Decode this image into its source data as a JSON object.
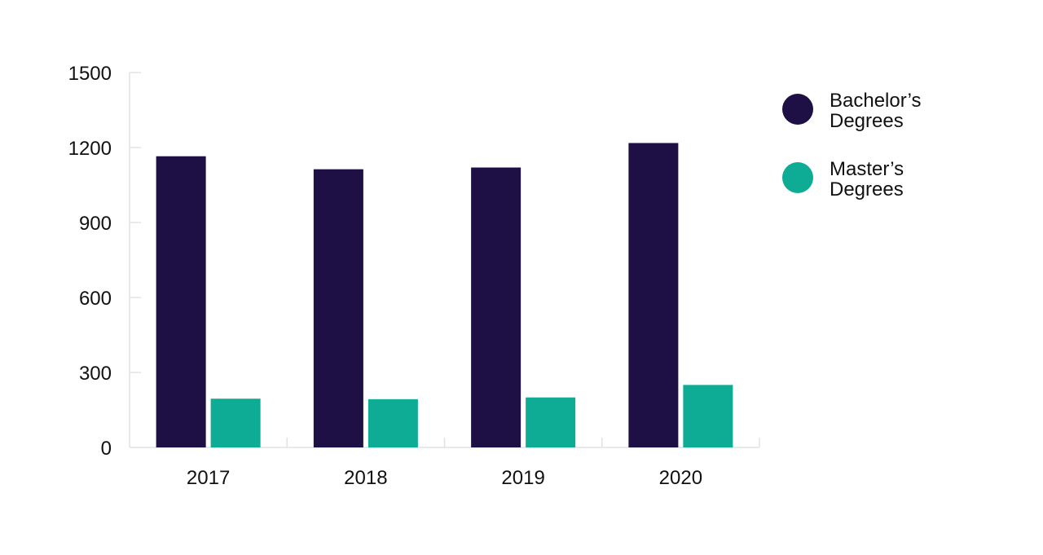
{
  "chart_data": {
    "type": "bar",
    "categories": [
      "2017",
      "2018",
      "2019",
      "2020"
    ],
    "series": [
      {
        "name": "Bachelor’s Degrees",
        "name_lines": [
          "Bachelor’s",
          "Degrees"
        ],
        "color": "#1e1045",
        "values": [
          1165,
          1113,
          1120,
          1218
        ]
      },
      {
        "name": "Master’s Degrees",
        "name_lines": [
          "Master’s",
          "Degrees"
        ],
        "color": "#0eab95",
        "values": [
          195,
          193,
          200,
          250
        ]
      }
    ],
    "ylim": [
      0,
      1500
    ],
    "yticks": [
      0,
      300,
      600,
      900,
      1200,
      1500
    ],
    "title": "",
    "xlabel": "",
    "ylabel": "",
    "grid": false,
    "legend_position": "right"
  }
}
